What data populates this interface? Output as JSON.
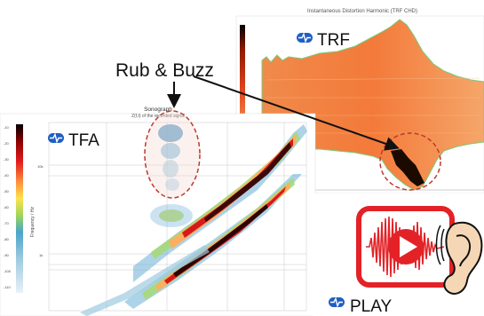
{
  "callout": {
    "text": "Rub & Buzz"
  },
  "tfa_panel": {
    "badge": "TFA",
    "title": "Sonograph",
    "subtitle": "Z(f,t) of the recorded signal",
    "ylabel": "Frequency / Hz",
    "tick_labels": [
      "10k",
      "1k",
      "100"
    ],
    "colorbar_labels": [
      "-10",
      "-20",
      "-30",
      "-40",
      "-50",
      "-60",
      "-70",
      "-80",
      "-90",
      "-100",
      "-110"
    ]
  },
  "trf_panel": {
    "badge": "TRF",
    "title": "Instantaneous Distortion Harmonic (TRF CHD)"
  },
  "play_panel": {
    "badge": "PLAY"
  },
  "colors": {
    "badge_blue": "#1f5fc4",
    "play_red": "#e32227",
    "dashed_ellipse": "#c0392b",
    "arrow": "#111111"
  }
}
